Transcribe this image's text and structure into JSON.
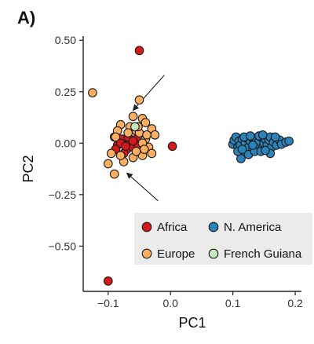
{
  "chart_data": {
    "type": "scatter",
    "panel_label": "A)",
    "xlabel": "PC1",
    "ylabel": "PC2",
    "xlim": [
      -0.14,
      0.21
    ],
    "ylim": [
      -0.72,
      0.52
    ],
    "x_ticks": [
      -0.1,
      0.0,
      0.1,
      0.2
    ],
    "x_tick_labels": [
      "−0.1",
      "0.0",
      "0.1",
      "0.2"
    ],
    "y_ticks": [
      0.5,
      0.25,
      0.0,
      -0.25,
      -0.5
    ],
    "y_tick_labels": [
      "0.50",
      "0.25",
      "0.00",
      "−0.25",
      "−0.50"
    ],
    "grid": false,
    "legend_position": "bottom-right",
    "series": [
      {
        "name": "Africa",
        "color": "#d7191c",
        "points": [
          [
            -0.05,
            0.45
          ],
          [
            -0.1,
            -0.67
          ],
          [
            0.003,
            -0.015
          ],
          [
            -0.085,
            -0.01
          ],
          [
            -0.078,
            0.02
          ],
          [
            -0.07,
            -0.03
          ],
          [
            -0.065,
            0.0
          ],
          [
            -0.06,
            -0.02
          ],
          [
            -0.055,
            0.02
          ],
          [
            -0.075,
            -0.05
          ],
          [
            -0.068,
            0.03
          ],
          [
            -0.088,
            -0.03
          ],
          [
            -0.052,
            -0.01
          ],
          [
            -0.06,
            0.01
          ],
          [
            -0.08,
            0.0
          ],
          [
            -0.072,
            -0.015
          ]
        ]
      },
      {
        "name": "Europe",
        "color": "#fdae61",
        "points": [
          [
            -0.125,
            0.245
          ],
          [
            -0.05,
            0.21
          ],
          [
            -0.1,
            -0.1
          ],
          [
            -0.09,
            -0.15
          ],
          [
            -0.06,
            0.13
          ],
          [
            -0.045,
            0.12
          ],
          [
            -0.03,
            0.07
          ],
          [
            -0.025,
            0.04
          ],
          [
            -0.035,
            -0.02
          ],
          [
            -0.04,
            0.02
          ],
          [
            -0.045,
            -0.06
          ],
          [
            -0.055,
            0.06
          ],
          [
            -0.065,
            0.08
          ],
          [
            -0.08,
            0.09
          ],
          [
            -0.09,
            0.03
          ],
          [
            -0.095,
            -0.05
          ],
          [
            -0.085,
            0.06
          ],
          [
            -0.075,
            -0.09
          ],
          [
            -0.06,
            -0.07
          ],
          [
            -0.05,
            0.05
          ],
          [
            -0.04,
            0.1
          ],
          [
            -0.03,
            -0.05
          ],
          [
            -0.045,
            0.0
          ],
          [
            -0.055,
            -0.04
          ],
          [
            -0.068,
            0.05
          ],
          [
            -0.038,
            0.04
          ],
          [
            -0.052,
            0.08
          ],
          [
            -0.042,
            -0.03
          ],
          [
            -0.08,
            -0.06
          ],
          [
            -0.088,
            0.03
          ]
        ]
      },
      {
        "name": "N. America",
        "color": "#2b83ba",
        "points": [
          [
            0.1,
            -0.005
          ],
          [
            0.102,
            0.015
          ],
          [
            0.105,
            0.03
          ],
          [
            0.108,
            -0.02
          ],
          [
            0.11,
            0.01
          ],
          [
            0.112,
            -0.01
          ],
          [
            0.115,
            0.02
          ],
          [
            0.118,
            -0.04
          ],
          [
            0.12,
            0.0
          ],
          [
            0.122,
            0.025
          ],
          [
            0.125,
            -0.02
          ],
          [
            0.128,
            0.01
          ],
          [
            0.13,
            0.03
          ],
          [
            0.132,
            -0.03
          ],
          [
            0.135,
            0.0
          ],
          [
            0.138,
            0.02
          ],
          [
            0.14,
            -0.015
          ],
          [
            0.142,
            0.01
          ],
          [
            0.145,
            0.03
          ],
          [
            0.148,
            -0.02
          ],
          [
            0.15,
            0.0
          ],
          [
            0.152,
            0.02
          ],
          [
            0.155,
            -0.01
          ],
          [
            0.158,
            0.015
          ],
          [
            0.16,
            0.03
          ],
          [
            0.162,
            -0.02
          ],
          [
            0.165,
            0.005
          ],
          [
            0.17,
            -0.01
          ],
          [
            0.175,
            0.015
          ],
          [
            0.178,
            -0.005
          ],
          [
            0.185,
            0.005
          ],
          [
            0.19,
            0.01
          ],
          [
            0.113,
            -0.075
          ],
          [
            0.108,
            -0.04
          ],
          [
            0.125,
            -0.055
          ],
          [
            0.135,
            -0.04
          ],
          [
            0.145,
            -0.04
          ],
          [
            0.16,
            -0.05
          ],
          [
            0.118,
            0.03
          ],
          [
            0.152,
            -0.035
          ],
          [
            0.168,
            0.03
          ],
          [
            0.128,
            0.035
          ],
          [
            0.142,
            0.035
          ],
          [
            0.115,
            -0.03
          ],
          [
            0.132,
            -0.01
          ],
          [
            0.148,
            0.04
          ]
        ]
      },
      {
        "name": "French Guiana",
        "color": "#c7e9c0",
        "points": [
          [
            -0.057,
            0.08
          ]
        ]
      }
    ],
    "arrows": [
      {
        "from": [
          -0.01,
          0.33
        ],
        "to": [
          -0.06,
          0.16
        ]
      },
      {
        "from": [
          -0.02,
          -0.28
        ],
        "to": [
          -0.07,
          -0.145
        ]
      }
    ]
  }
}
